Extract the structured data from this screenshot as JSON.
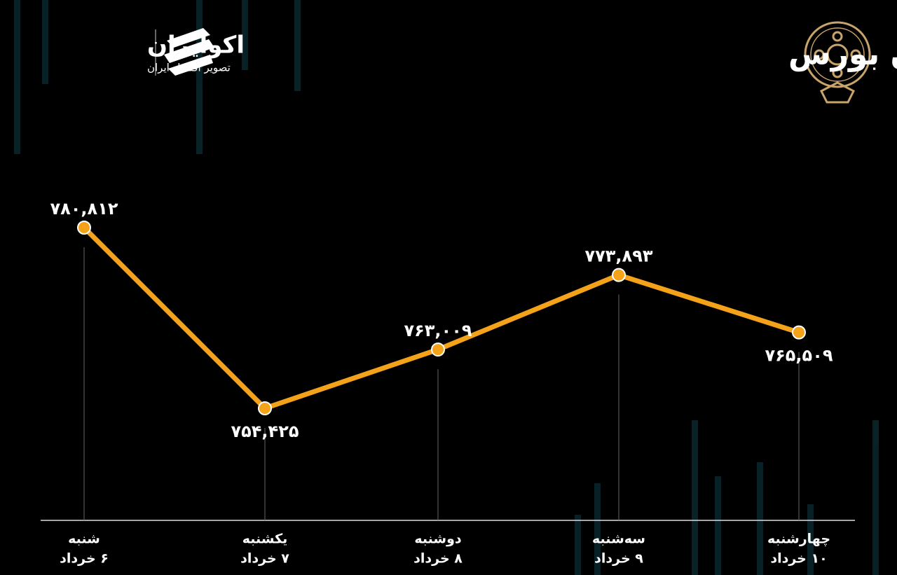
{
  "header": {
    "title": "روند هفته شاخص هم‌وزن بورس",
    "brand": "اکوایران",
    "tagline": "تصویر اقتصاد ایران"
  },
  "chart_data": {
    "type": "line",
    "categories": [
      "شنبه",
      "یکشنبه",
      "دوشنبه",
      "سه‌شنبه",
      "چهارشنبه"
    ],
    "category_dates": [
      "۶ خرداد",
      "۷ خرداد",
      "۸ خرداد",
      "۹ خرداد",
      "۱۰ خرداد"
    ],
    "values": [
      780812,
      754425,
      763009,
      773893,
      765509
    ],
    "value_labels": [
      "۷۸۰,۸۱۲",
      "۷۵۴,۴۲۵",
      "۷۶۳,۰۰۹",
      "۷۷۳,۸۹۳",
      "۷۶۵,۵۰۹"
    ],
    "color": "#f5a21b"
  }
}
